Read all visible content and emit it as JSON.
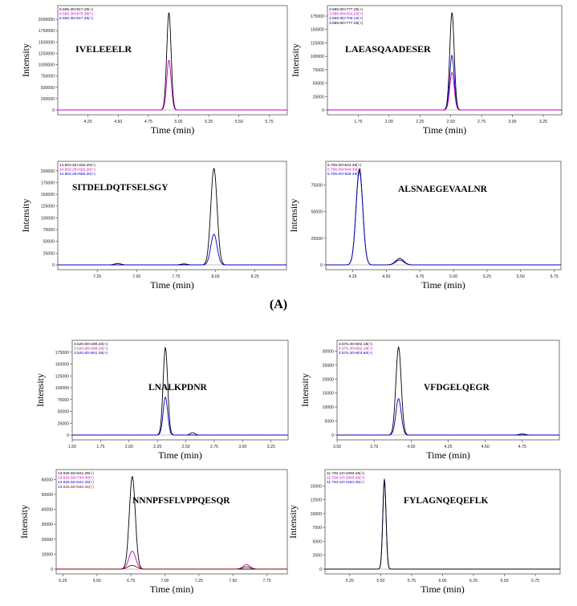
{
  "figure": {
    "section_labels": [
      "(A)"
    ]
  },
  "chart_data": [
    {
      "type": "line",
      "peptide": "IVELEEELR",
      "xlabel": "Time (min)",
      "ylabel": "Intensity",
      "xlim": [
        4.0,
        5.9
      ],
      "ylim": [
        0,
        2250000
      ],
      "xticks": [
        "4.25",
        "4.50",
        "4.75",
        "5.00",
        "5.25",
        "5.50",
        "5.75"
      ],
      "yticks": [
        "0",
        "250000",
        "500000",
        "750000",
        "1000000",
        "1250000",
        "1500000",
        "1750000",
        "2000000"
      ],
      "legend": [
        "6.565.30>917.28(+)",
        "6.565.30>675.38(+)",
        "6.565.30>917.28(+)"
      ],
      "legend_colors": [
        "#000000",
        "#c000c0",
        "#0000c0"
      ],
      "series": [
        {
          "color": "#000000",
          "peaks": [
            {
              "x": 4.92,
              "y": 2150000,
              "w": 0.018
            }
          ]
        },
        {
          "color": "#c000c0",
          "peaks": [
            {
              "x": 4.92,
              "y": 1100000,
              "w": 0.018
            }
          ]
        }
      ]
    },
    {
      "type": "line",
      "peptide": "LAEASQAADESER",
      "xlabel": "Time (min)",
      "ylabel": "Intensity",
      "xlim": [
        1.5,
        3.4
      ],
      "ylim": [
        0,
        190000
      ],
      "xticks": [
        "1.75",
        "2.00",
        "2.25",
        "2.50",
        "2.75",
        "3.00",
        "3.25"
      ],
      "yticks": [
        "0",
        "25000",
        "50000",
        "75000",
        "100000",
        "125000",
        "150000",
        "175000"
      ],
      "legend": [
        "3.688.80>777.25(+)",
        "3.688.80>520.25(+)",
        "3.688.80>706.15(+)",
        "3.688.80>777.25(+)"
      ],
      "legend_colors": [
        "#000000",
        "#c000c0",
        "#0000c0",
        "#000000"
      ],
      "series": [
        {
          "color": "#000000",
          "peaks": [
            {
              "x": 2.51,
              "y": 182000,
              "w": 0.018
            }
          ]
        },
        {
          "color": "#0000c0",
          "peaks": [
            {
              "x": 2.51,
              "y": 102000,
              "w": 0.018
            }
          ]
        },
        {
          "color": "#c000c0",
          "peaks": [
            {
              "x": 2.51,
              "y": 70000,
              "w": 0.018
            }
          ]
        }
      ]
    },
    {
      "type": "line",
      "peptide": "SITDELDQTFSELSGY",
      "xlabel": "Time (min)",
      "ylabel": "Intensity",
      "xlim": [
        7.0,
        8.45
      ],
      "ylim": [
        0,
        215000
      ],
      "xticks": [
        "7.25",
        "7.50",
        "7.75",
        "8.00",
        "8.25"
      ],
      "yticks": [
        "0",
        "25000",
        "50000",
        "75000",
        "100000",
        "125000",
        "150000",
        "175000",
        "200000"
      ],
      "legend": [
        "14.903.25>326.20(+)",
        "14.903.25>326.20(+)",
        "14.903.25>655.30(+)"
      ],
      "legend_colors": [
        "#000000",
        "#c000c0",
        "#0000c0"
      ],
      "series": [
        {
          "color": "#000000",
          "peaks": [
            {
              "x": 7.99,
              "y": 205000,
              "w": 0.02
            },
            {
              "x": 7.38,
              "y": 3000,
              "w": 0.02
            },
            {
              "x": 7.8,
              "y": 2000,
              "w": 0.02
            }
          ]
        },
        {
          "color": "#0000c0",
          "peaks": [
            {
              "x": 7.99,
              "y": 65000,
              "w": 0.02
            }
          ]
        }
      ]
    },
    {
      "type": "line",
      "peptide": "ALSNAEGEVAALNR",
      "xlabel": "Time (min)",
      "ylabel": "Intensity",
      "xlim": [
        4.05,
        5.8
      ],
      "ylim": [
        0,
        95000
      ],
      "xticks": [
        "4.25",
        "4.50",
        "4.75",
        "5.00",
        "5.25",
        "5.50",
        "5.75"
      ],
      "yticks": [
        "0",
        "25000",
        "50000",
        "75000"
      ],
      "legend": [
        "5.706.00>544.39(+)",
        "5.706.00>544.30(+)",
        "5.706.00>929.39(+)"
      ],
      "legend_colors": [
        "#000000",
        "#c000c0",
        "#0000c0"
      ],
      "series": [
        {
          "color": "#000000",
          "peaks": [
            {
              "x": 4.3,
              "y": 90000,
              "w": 0.025
            },
            {
              "x": 4.6,
              "y": 6000,
              "w": 0.03
            }
          ]
        },
        {
          "color": "#0000c0",
          "peaks": [
            {
              "x": 4.3,
              "y": 88000,
              "w": 0.025
            },
            {
              "x": 4.6,
              "y": 4500,
              "w": 0.03
            }
          ]
        }
      ]
    },
    {
      "type": "line",
      "peptide": "LNALKPDNR",
      "xlabel": "Time (min)",
      "ylabel": "Intensity",
      "xlim": [
        1.5,
        3.4
      ],
      "ylim": [
        0,
        195000
      ],
      "xticks": [
        "1.50",
        "1.75",
        "2.00",
        "2.25",
        "2.50",
        "2.75",
        "3.00",
        "3.25"
      ],
      "yticks": [
        "0",
        "25000",
        "50000",
        "75000",
        "100000",
        "125000",
        "150000",
        "175000"
      ],
      "legend": [
        "3.520.80>289.20(+)",
        "3.520.80>289.20(+)",
        "3.520.80>501.25(+)"
      ],
      "legend_colors": [
        "#000000",
        "#c000c0",
        "#0000c0"
      ],
      "series": [
        {
          "color": "#000000",
          "peaks": [
            {
              "x": 2.32,
              "y": 185000,
              "w": 0.02
            },
            {
              "x": 2.56,
              "y": 5000,
              "w": 0.02
            }
          ]
        },
        {
          "color": "#0000c0",
          "peaks": [
            {
              "x": 2.32,
              "y": 80000,
              "w": 0.02
            }
          ]
        }
      ]
    },
    {
      "type": "line",
      "peptide": "VFDGELQEGR",
      "xlabel": "Time (min)",
      "ylabel": "Intensity",
      "xlim": [
        3.5,
        5.0
      ],
      "ylim": [
        0,
        33000
      ],
      "xticks": [
        "3.50",
        "3.75",
        "4.00",
        "4.25",
        "4.50",
        "4.75"
      ],
      "yticks": [
        "0",
        "5000",
        "10000",
        "15000",
        "20000",
        "25000",
        "30000"
      ],
      "legend": [
        "4.575.30>602.18(+)",
        "4.575.30>602.18(+)",
        "4.575.30>903.60(+)"
      ],
      "legend_colors": [
        "#000000",
        "#c000c0",
        "#0000c0"
      ],
      "series": [
        {
          "color": "#000000",
          "peaks": [
            {
              "x": 3.915,
              "y": 31500,
              "w": 0.018
            }
          ]
        },
        {
          "color": "#0000c0",
          "peaks": [
            {
              "x": 3.915,
              "y": 13000,
              "w": 0.018
            },
            {
              "x": 4.75,
              "y": 400,
              "w": 0.02
            }
          ]
        }
      ]
    },
    {
      "type": "line",
      "peptide": "NNNPFSFLVPPQESQR",
      "xlabel": "Time (min)",
      "ylabel": "Intensity",
      "xlim": [
        6.2,
        7.9
      ],
      "ylim": [
        0,
        65000
      ],
      "xticks": [
        "6.25",
        "6.50",
        "6.75",
        "7.00",
        "7.25",
        "7.50",
        "7.75"
      ],
      "yticks": [
        "0",
        "10000",
        "20000",
        "30000",
        "40000",
        "50000",
        "60000"
      ],
      "legend": [
        "13.925.50>841.39(+)",
        "13.925.50>744.39(+)",
        "13.925.50>841.39(+)",
        "13.925.50>940.40(+)"
      ],
      "legend_colors": [
        "#000000",
        "#c000c0",
        "#0000c0",
        "#800000"
      ],
      "series": [
        {
          "color": "#000000",
          "peaks": [
            {
              "x": 6.76,
              "y": 62000,
              "w": 0.022
            }
          ]
        },
        {
          "color": "#c000c0",
          "peaks": [
            {
              "x": 6.76,
              "y": 12000,
              "w": 0.025
            },
            {
              "x": 7.6,
              "y": 3000,
              "w": 0.025
            }
          ]
        },
        {
          "color": "#800000",
          "peaks": [
            {
              "x": 6.76,
              "y": 2500,
              "w": 0.03
            },
            {
              "x": 7.6,
              "y": 1500,
              "w": 0.03
            }
          ]
        }
      ]
    },
    {
      "type": "line",
      "peptide": "FYLAGNQEQEFLK",
      "xlabel": "Time (min)",
      "ylabel": "Intensity",
      "xlim": [
        5.05,
        6.95
      ],
      "ylim": [
        0,
        17500
      ],
      "xticks": [
        "5.25",
        "5.50",
        "5.75",
        "6.00",
        "6.25",
        "6.50",
        "6.75"
      ],
      "yticks": [
        "0",
        "2500",
        "5000",
        "7500",
        "10000",
        "12500",
        "15000"
      ],
      "legend": [
        "11.794.10>1093.45(+)",
        "11.794.10>1093.45(+)",
        "11.794.10>1164.45(+)"
      ],
      "legend_colors": [
        "#000000",
        "#c000c0",
        "#0000c0"
      ],
      "series": [
        {
          "color": "#0000c0",
          "peaks": [
            {
              "x": 5.53,
              "y": 16300,
              "w": 0.013
            }
          ]
        },
        {
          "color": "#000000",
          "peaks": [
            {
              "x": 5.53,
              "y": 16000,
              "w": 0.013
            }
          ]
        }
      ]
    }
  ]
}
